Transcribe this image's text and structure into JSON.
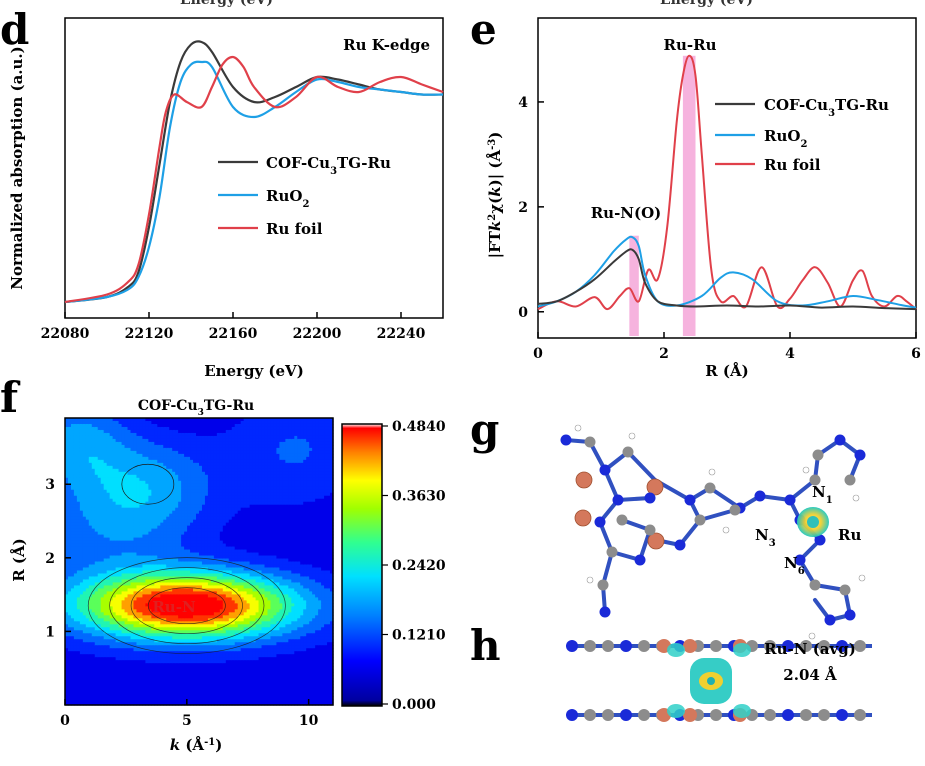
{
  "panels": {
    "d": {
      "label": "d",
      "header_cut": "Energy (eV)",
      "annotation": "Ru K-edge",
      "xlabel": "Energy (eV)",
      "ylabel": "Normalized absorption (a.u.)",
      "xticks": [
        "22080",
        "22120",
        "22160",
        "22200",
        "22240"
      ],
      "legend": [
        "COF-Cu3TG-Ru",
        "RuO2",
        "Ru foil"
      ]
    },
    "e": {
      "label": "e",
      "header_cut": "Energy (eV)",
      "xlabel": "R (Å)",
      "ylabel": "|FT k²χ(k)| (Å⁻³)",
      "xticks": [
        "0",
        "2",
        "4",
        "6"
      ],
      "yticks": [
        "0",
        "2",
        "4"
      ],
      "peak_labels": [
        "Ru-Ru",
        "Ru-N(O)"
      ],
      "legend": [
        "COF-Cu3TG-Ru",
        "RuO2",
        "Ru foil"
      ]
    },
    "f": {
      "label": "f",
      "title": "COF-Cu3TG-Ru",
      "xlabel": "k (Å⁻¹)",
      "ylabel": "R (Å)",
      "xticks": [
        "0",
        "5",
        "10"
      ],
      "yticks": [
        "1",
        "2",
        "3"
      ],
      "spot_label": "Ru-N",
      "colorbar_ticks": [
        "0.4840",
        "0.3630",
        "0.2420",
        "0.1210",
        "0.000"
      ]
    },
    "g": {
      "label": "g",
      "atom_labels": [
        "N1",
        "N3",
        "N6",
        "Ru"
      ]
    },
    "h": {
      "label": "h",
      "bond_label": "Ru-N (avg)",
      "bond_length": "2.04 Å"
    }
  },
  "colors": {
    "cof": "#3a3a3a",
    "ruo2": "#1ea0e6",
    "rufoil": "#e0404a",
    "highlight": "#f4a6d8",
    "ru_atom": "#d4785c",
    "n_atom": "#1a2ad8",
    "c_atom": "#8c8c8c"
  },
  "chart_data": [
    {
      "type": "line",
      "panel": "d",
      "xlabel": "Energy (eV)",
      "ylabel": "Normalized absorption (a.u.)",
      "xlim": [
        22080,
        22260
      ],
      "series": [
        {
          "name": "COF-Cu3TG-Ru",
          "x": [
            22080,
            22100,
            22110,
            22115,
            22120,
            22125,
            22130,
            22135,
            22140,
            22145,
            22150,
            22160,
            22170,
            22180,
            22190,
            22200,
            22210,
            22220,
            22230,
            22240,
            22250,
            22260
          ],
          "y": [
            0.0,
            0.02,
            0.06,
            0.12,
            0.3,
            0.55,
            0.8,
            0.96,
            1.03,
            1.04,
            1.0,
            0.86,
            0.8,
            0.82,
            0.86,
            0.9,
            0.89,
            0.87,
            0.85,
            0.84,
            0.83,
            0.83
          ]
        },
        {
          "name": "RuO2",
          "x": [
            22080,
            22100,
            22110,
            22115,
            22120,
            22125,
            22130,
            22135,
            22140,
            22145,
            22150,
            22160,
            22170,
            22180,
            22190,
            22200,
            22210,
            22220,
            22230,
            22240,
            22250,
            22260
          ],
          "y": [
            0.0,
            0.02,
            0.05,
            0.1,
            0.22,
            0.42,
            0.7,
            0.88,
            0.95,
            0.96,
            0.94,
            0.78,
            0.74,
            0.78,
            0.84,
            0.89,
            0.88,
            0.86,
            0.85,
            0.84,
            0.83,
            0.83
          ]
        },
        {
          "name": "Ru foil",
          "x": [
            22080,
            22100,
            22110,
            22115,
            22120,
            22125,
            22128,
            22132,
            22138,
            22145,
            22150,
            22155,
            22160,
            22165,
            22170,
            22180,
            22190,
            22200,
            22210,
            22220,
            22230,
            22240,
            22250,
            22260
          ],
          "y": [
            0.0,
            0.03,
            0.08,
            0.15,
            0.35,
            0.62,
            0.76,
            0.83,
            0.8,
            0.78,
            0.86,
            0.95,
            0.98,
            0.94,
            0.86,
            0.78,
            0.82,
            0.9,
            0.86,
            0.84,
            0.88,
            0.9,
            0.87,
            0.84
          ]
        }
      ]
    },
    {
      "type": "line",
      "panel": "e",
      "xlabel": "R (Å)",
      "ylabel": "|FT k²χ(k)| (Å⁻³)",
      "xlim": [
        0,
        6
      ],
      "ylim": [
        -0.5,
        5.6
      ],
      "series": [
        {
          "name": "COF-Cu3TG-Ru",
          "x": [
            0,
            0.3,
            0.6,
            0.9,
            1.2,
            1.4,
            1.5,
            1.6,
            1.7,
            1.9,
            2.2,
            2.5,
            3.0,
            3.5,
            4.0,
            4.5,
            5.0,
            5.5,
            6.0
          ],
          "y": [
            0.15,
            0.2,
            0.38,
            0.62,
            0.95,
            1.15,
            1.18,
            1.0,
            0.55,
            0.2,
            0.12,
            0.1,
            0.12,
            0.1,
            0.12,
            0.08,
            0.1,
            0.07,
            0.05
          ]
        },
        {
          "name": "RuO2",
          "x": [
            0,
            0.3,
            0.6,
            0.9,
            1.2,
            1.4,
            1.5,
            1.6,
            1.7,
            1.9,
            2.2,
            2.6,
            2.9,
            3.1,
            3.4,
            3.8,
            4.2,
            4.6,
            5.0,
            5.4,
            5.8,
            6.0
          ],
          "y": [
            0.1,
            0.2,
            0.38,
            0.7,
            1.15,
            1.38,
            1.42,
            1.25,
            0.7,
            0.2,
            0.12,
            0.3,
            0.65,
            0.75,
            0.62,
            0.2,
            0.12,
            0.2,
            0.3,
            0.22,
            0.12,
            0.08
          ]
        },
        {
          "name": "Ru foil",
          "x": [
            0,
            0.3,
            0.6,
            0.9,
            1.1,
            1.3,
            1.45,
            1.6,
            1.75,
            1.9,
            2.05,
            2.2,
            2.3,
            2.4,
            2.5,
            2.6,
            2.75,
            2.9,
            3.1,
            3.3,
            3.55,
            3.8,
            4.0,
            4.2,
            4.4,
            4.6,
            4.8,
            5.0,
            5.15,
            5.3,
            5.5,
            5.7,
            5.85,
            6.0
          ],
          "y": [
            0.05,
            0.2,
            0.1,
            0.28,
            0.05,
            0.3,
            0.45,
            0.2,
            0.8,
            0.62,
            1.6,
            3.6,
            4.5,
            4.88,
            4.5,
            3.0,
            0.8,
            0.2,
            0.3,
            0.1,
            0.85,
            0.1,
            0.25,
            0.6,
            0.85,
            0.55,
            0.1,
            0.6,
            0.78,
            0.3,
            0.1,
            0.3,
            0.2,
            0.05
          ]
        }
      ]
    },
    {
      "type": "heatmap",
      "panel": "f",
      "title": "COF-Cu3TG-Ru",
      "xlabel": "k (Å⁻¹)",
      "ylabel": "R (Å)",
      "xlim": [
        0,
        11
      ],
      "ylim": [
        0,
        3.9
      ],
      "zlim": [
        0,
        0.484
      ],
      "peaks": [
        {
          "k": 5.0,
          "R": 1.35,
          "value": 0.484,
          "sigma_k": 3.2,
          "sigma_R": 0.32
        },
        {
          "k": 3.4,
          "R": 3.0,
          "value": 0.13,
          "sigma_k": 2.0,
          "sigma_R": 0.5
        },
        {
          "k": 0.5,
          "R": 3.6,
          "value": 0.13,
          "sigma_k": 1.5,
          "sigma_R": 0.5
        },
        {
          "k": 9.5,
          "R": 3.5,
          "value": 0.09,
          "sigma_k": 2.2,
          "sigma_R": 0.6
        },
        {
          "k": 1.5,
          "R": 2.3,
          "value": 0.08,
          "sigma_k": 2.5,
          "sigma_R": 0.5
        }
      ],
      "background": 0.06
    }
  ]
}
